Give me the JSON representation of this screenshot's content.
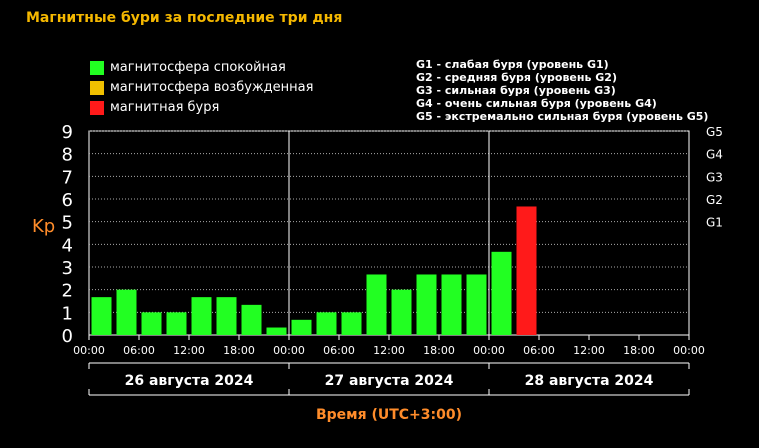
{
  "title": "Магнитные бури за последние три дня",
  "legend": [
    {
      "label": "магнитосфера спокойная",
      "color": "#22ff22"
    },
    {
      "label": "магнитосфера возбужденная",
      "color": "#f0c000"
    },
    {
      "label": "магнитная буря",
      "color": "#ff1a1a"
    }
  ],
  "g_levels": [
    "G1 - слабая буря (уровень G1)",
    "G2 - средняя буря (уровень G2)",
    "G3 - сильная буря (уровень G3)",
    "G4 - очень сильная буря (уровень G4)",
    "G5 - экстремально сильная буря (уровень G5)"
  ],
  "chart_data": {
    "type": "bar",
    "ylabel": "Kp",
    "xlabel": "Время (UTC+3:00)",
    "ylim": [
      0,
      9
    ],
    "yticks": [
      "0",
      "1",
      "2",
      "3",
      "4",
      "5",
      "6",
      "7",
      "8",
      "9"
    ],
    "right_ticks": [
      {
        "label": "G1",
        "value": 5
      },
      {
        "label": "G2",
        "value": 6
      },
      {
        "label": "G3",
        "value": 7
      },
      {
        "label": "G4",
        "value": 8
      },
      {
        "label": "G5",
        "value": 9
      }
    ],
    "x_tick_labels": [
      "00:00",
      "06:00",
      "12:00",
      "18:00",
      "00:00",
      "06:00",
      "12:00",
      "18:00",
      "00:00",
      "06:00",
      "12:00",
      "18:00",
      "00:00"
    ],
    "days": [
      "26 августа 2024",
      "27 августа 2024",
      "28 августа 2024"
    ],
    "interval_hours": 3,
    "total_hours": 72,
    "values": [
      1.67,
      2.0,
      1.0,
      1.0,
      1.67,
      1.67,
      1.33,
      0.33,
      0.67,
      1.0,
      1.0,
      2.67,
      2.0,
      2.67,
      2.67,
      2.67,
      3.67,
      5.67
    ],
    "colors": [
      "#22ff22",
      "#22ff22",
      "#22ff22",
      "#22ff22",
      "#22ff22",
      "#22ff22",
      "#22ff22",
      "#22ff22",
      "#22ff22",
      "#22ff22",
      "#22ff22",
      "#22ff22",
      "#22ff22",
      "#22ff22",
      "#22ff22",
      "#22ff22",
      "#22ff22",
      "#ff1a1a"
    ],
    "grid": true
  }
}
